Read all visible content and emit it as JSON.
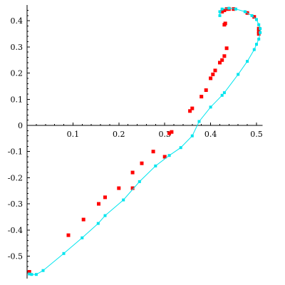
{
  "chart_data": {
    "type": "scatter",
    "title": "",
    "xlabel": "",
    "ylabel": "",
    "xlim": [
      0,
      0.51
    ],
    "ylim": [
      -0.58,
      0.45
    ],
    "grid": false,
    "x_ticks": [
      {
        "value": 0.1,
        "label": "0.1"
      },
      {
        "value": 0.2,
        "label": "0.2"
      },
      {
        "value": 0.3,
        "label": "0.3"
      },
      {
        "value": 0.4,
        "label": "0.4"
      },
      {
        "value": 0.5,
        "label": "0.5"
      }
    ],
    "y_ticks": [
      {
        "value": 0.4,
        "label": "0.4"
      },
      {
        "value": 0.3,
        "label": "0.3"
      },
      {
        "value": 0.2,
        "label": "0.2"
      },
      {
        "value": 0.1,
        "label": "0.1"
      },
      {
        "value": 0,
        "label": "0"
      },
      {
        "value": -0.1,
        "label": "-0.1"
      },
      {
        "value": -0.2,
        "label": "-0.2"
      },
      {
        "value": -0.3,
        "label": "-0.3"
      },
      {
        "value": -0.4,
        "label": "-0.4"
      },
      {
        "value": -0.5,
        "label": "-0.5"
      }
    ],
    "series": [
      {
        "marker": "square",
        "color": "#ff0000",
        "connected": false,
        "points": [
          [
            0.005,
            -0.56
          ],
          [
            0.09,
            -0.42
          ],
          [
            0.123,
            -0.36
          ],
          [
            0.156,
            -0.3
          ],
          [
            0.17,
            -0.275
          ],
          [
            0.2,
            -0.24
          ],
          [
            0.23,
            -0.24
          ],
          [
            0.23,
            -0.18
          ],
          [
            0.25,
            -0.145
          ],
          [
            0.275,
            -0.1
          ],
          [
            0.3,
            -0.12
          ],
          [
            0.31,
            -0.03
          ],
          [
            0.315,
            -0.025
          ],
          [
            0.355,
            0.055
          ],
          [
            0.36,
            0.065
          ],
          [
            0.38,
            0.11
          ],
          [
            0.39,
            0.135
          ],
          [
            0.4,
            0.18
          ],
          [
            0.405,
            0.195
          ],
          [
            0.41,
            0.21
          ],
          [
            0.42,
            0.24
          ],
          [
            0.425,
            0.25
          ],
          [
            0.43,
            0.265
          ],
          [
            0.435,
            0.295
          ],
          [
            0.43,
            0.385
          ],
          [
            0.432,
            0.39
          ],
          [
            0.425,
            0.435
          ],
          [
            0.43,
            0.44
          ],
          [
            0.435,
            0.445
          ],
          [
            0.44,
            0.445
          ],
          [
            0.45,
            0.445
          ],
          [
            0.48,
            0.43
          ],
          [
            0.495,
            0.415
          ],
          [
            0.505,
            0.37
          ],
          [
            0.505,
            0.36
          ],
          [
            0.505,
            0.35
          ]
        ]
      },
      {
        "marker": "square",
        "color": "#00e5ee",
        "connected": true,
        "points": [
          [
            0.005,
            -0.568
          ],
          [
            0.01,
            -0.57
          ],
          [
            0.02,
            -0.57
          ],
          [
            0.035,
            -0.555
          ],
          [
            0.08,
            -0.49
          ],
          [
            0.12,
            -0.43
          ],
          [
            0.155,
            -0.375
          ],
          [
            0.17,
            -0.345
          ],
          [
            0.21,
            -0.285
          ],
          [
            0.245,
            -0.215
          ],
          [
            0.28,
            -0.155
          ],
          [
            0.31,
            -0.115
          ],
          [
            0.335,
            -0.085
          ],
          [
            0.36,
            -0.04
          ],
          [
            0.375,
            0.015
          ],
          [
            0.4,
            0.07
          ],
          [
            0.425,
            0.115
          ],
          [
            0.43,
            0.125
          ],
          [
            0.46,
            0.195
          ],
          [
            0.48,
            0.245
          ],
          [
            0.495,
            0.29
          ],
          [
            0.5,
            0.31
          ],
          [
            0.505,
            0.33
          ],
          [
            0.508,
            0.355
          ],
          [
            0.508,
            0.37
          ],
          [
            0.505,
            0.385
          ],
          [
            0.5,
            0.405
          ],
          [
            0.49,
            0.42
          ],
          [
            0.475,
            0.435
          ],
          [
            0.455,
            0.445
          ],
          [
            0.44,
            0.448
          ],
          [
            0.425,
            0.445
          ],
          [
            0.42,
            0.435
          ],
          [
            0.42,
            0.42
          ]
        ]
      }
    ]
  }
}
